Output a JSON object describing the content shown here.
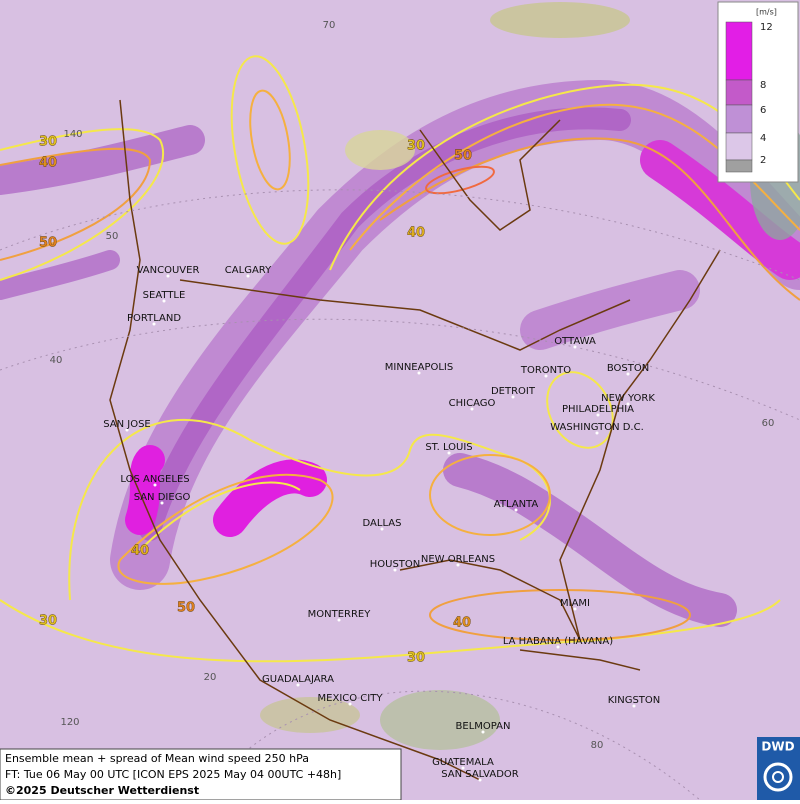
{
  "legend": {
    "unit": "[m/s]",
    "ticks": [
      12,
      8,
      6,
      4,
      2
    ]
  },
  "cities": [
    "VANCOUVER",
    "CALGARY",
    "SEATTLE",
    "PORTLAND",
    "MINNEAPOLIS",
    "OTTAWA",
    "TORONTO",
    "BOSTON",
    "DETROIT",
    "CHICAGO",
    "NEW YORK",
    "PHILADELPHIA",
    "WASHINGTON D.C.",
    "SAN JOSE",
    "ST. LOUIS",
    "LOS ANGELES",
    "SAN DIEGO",
    "ATLANTA",
    "DALLAS",
    "HOUSTON",
    "NEW ORLEANS",
    "MIAMI",
    "MONTERREY",
    "LA HABANA (HAVANA)",
    "GUADALAJARA",
    "MEXICO CITY",
    "KINGSTON",
    "BELMOPAN",
    "GUATEMALA",
    "SAN SALVADOR"
  ],
  "contour_labels": [
    30,
    40,
    50,
    30,
    50,
    40,
    40,
    50,
    30,
    40,
    30
  ],
  "graticule_labels": [
    140,
    50,
    40,
    70,
    60,
    20,
    120,
    80
  ],
  "footer": {
    "line1": "Ensemble mean + spread of Mean wind speed 250 hPa",
    "line2": "FT: Tue 06 May 00 UTC [ICON EPS 2025 May 04 00UTC +48h]",
    "line3": "©2025 Deutscher Wetterdienst"
  },
  "logo": "DWD"
}
